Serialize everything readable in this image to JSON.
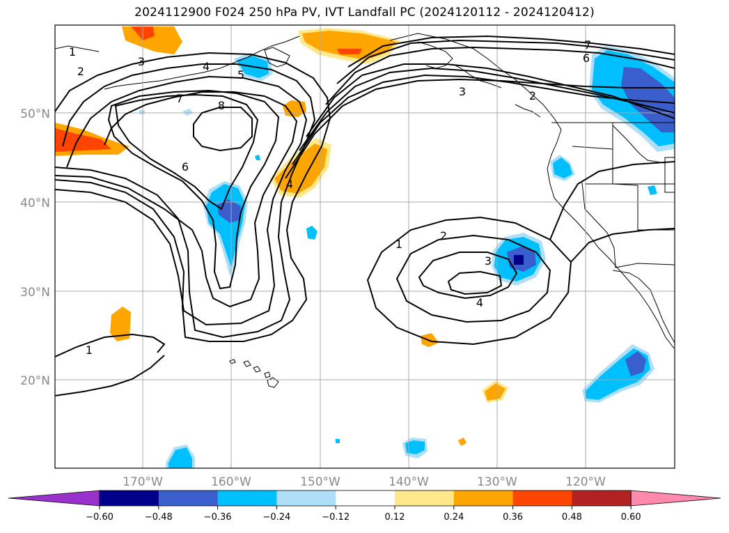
{
  "title": "2024112900 F024 250 hPa PV, IVT Landfall PC (2024120112 - 2024120412)",
  "lat_labels": [
    "50°N",
    "40°N",
    "30°N",
    "20°N"
  ],
  "lon_labels": [
    "170°W",
    "160°W",
    "150°W",
    "140°W",
    "130°W",
    "120°W"
  ],
  "contour_labels": [
    "1",
    "2",
    "3",
    "4",
    "5",
    "6",
    "7",
    "8",
    "7",
    "6",
    "3",
    "2",
    "4",
    "1",
    "2",
    "3",
    "4",
    "1"
  ],
  "colorbar": {
    "ticks": [
      "−0.60",
      "−0.48",
      "−0.36",
      "−0.24",
      "−0.12",
      "0.12",
      "0.24",
      "0.36",
      "0.48",
      "0.60"
    ],
    "colors": [
      "#9932CC",
      "#00008B",
      "#3A5FCD",
      "#00BFFF",
      "#ADE0F8",
      "#FFFFFF",
      "#FFE88A",
      "#FFA500",
      "#FF4500",
      "#B22222",
      "#FF8AAE"
    ]
  }
}
